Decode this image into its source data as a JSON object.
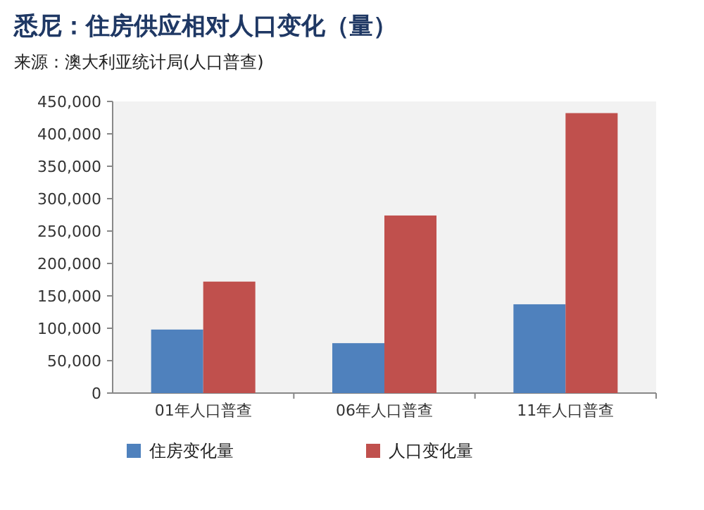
{
  "chart_data": {
    "type": "bar",
    "title": "悉尼：住房供应相对人口变化（量）",
    "subtitle": "来源：澳大利亚统计局(人口普查)",
    "categories": [
      "01年人口普查",
      "06年人口普查",
      "11年人口普查"
    ],
    "series": [
      {
        "name": "住房变化量",
        "color": "#4f81bd",
        "values": [
          98000,
          77000,
          137000
        ]
      },
      {
        "name": "人口变化量",
        "color": "#c0504d",
        "values": [
          172000,
          274000,
          432000
        ]
      }
    ],
    "ylim": [
      0,
      450000
    ],
    "yticks": [
      {
        "value": 0,
        "label": "0"
      },
      {
        "value": 50000,
        "label": "50,000"
      },
      {
        "value": 100000,
        "label": "100,000"
      },
      {
        "value": 150000,
        "label": "150,000"
      },
      {
        "value": 200000,
        "label": "200,000"
      },
      {
        "value": 250000,
        "label": "250,000"
      },
      {
        "value": 300000,
        "label": "300,000"
      },
      {
        "value": 350000,
        "label": "350,000"
      },
      {
        "value": 400000,
        "label": "400,000"
      },
      {
        "value": 450000,
        "label": "450,000"
      }
    ],
    "grid": false,
    "legend": "bottom"
  }
}
